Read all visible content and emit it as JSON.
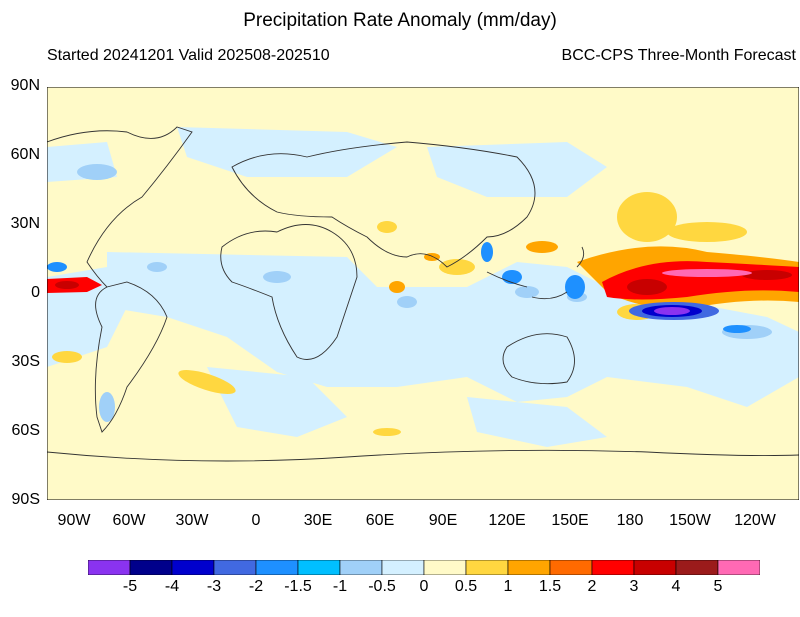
{
  "title": "Precipitation Rate Anomaly (mm/day)",
  "subtitle_left": "Started 20241201  Valid 202508-202510",
  "subtitle_right": "BCC-CPS Three-Month Forecast",
  "lat_labels": [
    "90N",
    "60N",
    "30N",
    "0",
    "30S",
    "60S",
    "90S"
  ],
  "lon_labels": [
    "90W",
    "60W",
    "30W",
    "0",
    "30E",
    "60E",
    "90E",
    "120E",
    "150E",
    "180",
    "150W",
    "120W"
  ],
  "colorbar": {
    "labels": [
      "-5",
      "-4",
      "-3",
      "-2",
      "-1.5",
      "-1",
      "-0.5",
      "0",
      "0.5",
      "1",
      "1.5",
      "2",
      "3",
      "4",
      "5"
    ],
    "colors": [
      "#8a33f0",
      "#00008b",
      "#0000cd",
      "#4169e1",
      "#1e90ff",
      "#00bfff",
      "#a0d0f8",
      "#d4f0ff",
      "#fffac8",
      "#ffd740",
      "#ffa500",
      "#ff6a00",
      "#ff0000",
      "#c80000",
      "#9b1b1b",
      "#ff69b4"
    ]
  },
  "map_colors": {
    "background": "#fffac8",
    "light_blue": "#d4f0ff",
    "mid_blue": "#a0d0f8",
    "coast": "#333333"
  }
}
